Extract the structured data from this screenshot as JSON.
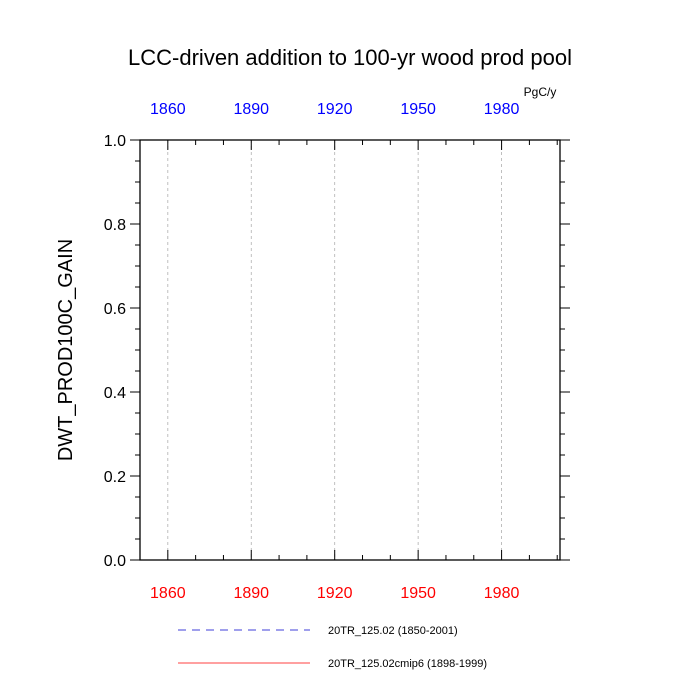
{
  "chart_data": {
    "type": "line",
    "title": "LCC-driven addition to 100-yr wood prod pool",
    "units": "PgC/y",
    "ylabel": "DWT_PROD100C_GAIN",
    "xlabel": "",
    "xlim": [
      1850,
      2001
    ],
    "ylim": [
      0.0,
      1.0
    ],
    "x_ticks": [
      1860,
      1890,
      1920,
      1950,
      1980
    ],
    "y_ticks": [
      "0.0",
      "0.2",
      "0.4",
      "0.6",
      "0.8",
      "1.0"
    ],
    "grid": "vertical dashed at x ticks",
    "colors": {
      "bottom_axis_labels": "#ff0000",
      "top_axis_labels": "#0000ff"
    },
    "legend_position": "bottom",
    "series": [
      {
        "name": "20TR_125.02 (1850-2001)",
        "x": [
          1850,
          2001
        ],
        "values": [
          0,
          0
        ],
        "color": "#0000cc",
        "dash": "dashed"
      },
      {
        "name": "20TR_125.02cmip6 (1898-1999)",
        "x": [
          1898,
          1999
        ],
        "values": [
          0,
          0
        ],
        "color": "#ff0000",
        "dash": "solid"
      }
    ]
  }
}
